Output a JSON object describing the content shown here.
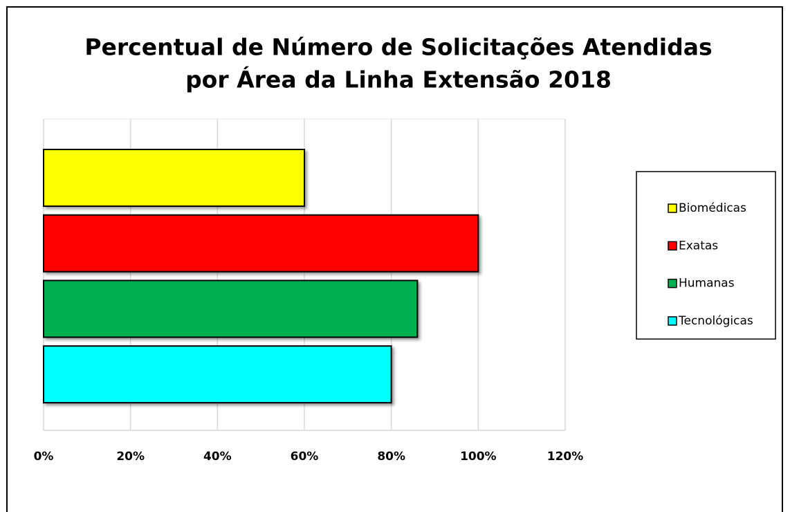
{
  "chart_data": {
    "type": "bar",
    "title": [
      "Percentual de Número de Solicitações Atendidas",
      "por Área da Linha Extensão 2018"
    ],
    "orientation": "horizontal",
    "series": [
      {
        "name": "Biomédicas",
        "color": "#ffff00",
        "values": [
          60
        ]
      },
      {
        "name": "Exatas",
        "color": "#ff0000",
        "values": [
          100
        ]
      },
      {
        "name": "Humanas",
        "color": "#00b050",
        "values": [
          86
        ]
      },
      {
        "name": "Tecnológicas",
        "color": "#00ffff",
        "values": [
          80
        ]
      }
    ],
    "xlim": [
      0,
      120
    ],
    "xticks": [
      {
        "value": 0,
        "label": "0%"
      },
      {
        "value": 20,
        "label": "20%"
      },
      {
        "value": 40,
        "label": "40%"
      },
      {
        "value": 60,
        "label": "60%"
      },
      {
        "value": 80,
        "label": "80%"
      },
      {
        "value": 100,
        "label": "100%"
      },
      {
        "value": 120,
        "label": "120%"
      }
    ],
    "grid": true,
    "legend": "right"
  }
}
